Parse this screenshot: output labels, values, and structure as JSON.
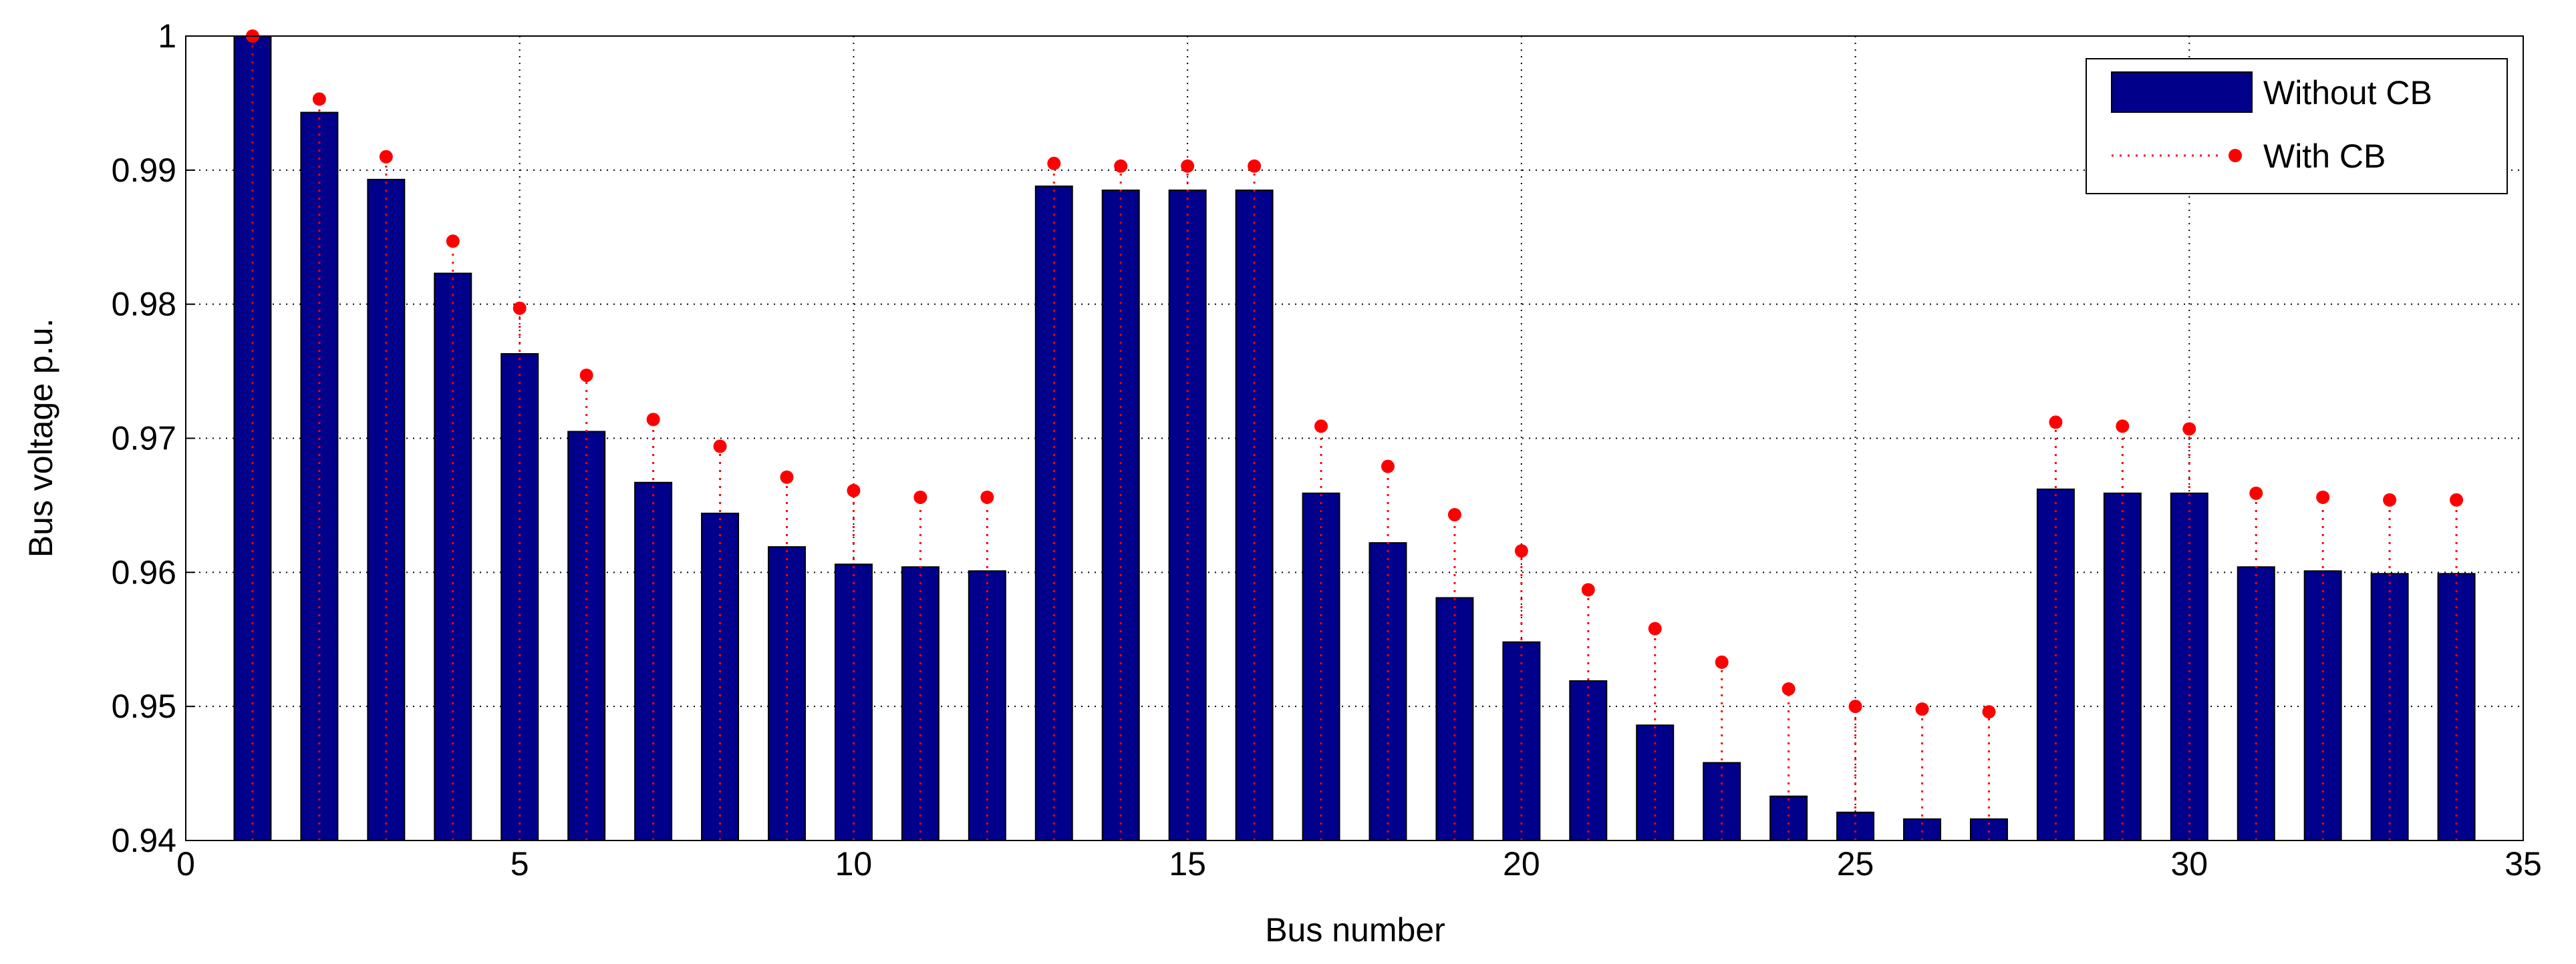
{
  "chart_data": {
    "type": "bar_stem",
    "xlabel": "Bus number",
    "ylabel": "Bus voltage p.u.",
    "x": [
      1,
      2,
      3,
      4,
      5,
      6,
      7,
      8,
      9,
      10,
      11,
      12,
      13,
      14,
      15,
      16,
      17,
      18,
      19,
      20,
      21,
      22,
      23,
      24,
      25,
      26,
      27,
      28,
      29,
      30,
      31,
      32,
      33,
      34
    ],
    "series": [
      {
        "name": "Without CB",
        "color": "#00008b",
        "values": [
          1.0,
          0.9943,
          0.9893,
          0.9823,
          0.9763,
          0.9705,
          0.9667,
          0.9644,
          0.9619,
          0.9606,
          0.9604,
          0.9601,
          0.9888,
          0.9885,
          0.9885,
          0.9885,
          0.9659,
          0.9622,
          0.9581,
          0.9548,
          0.9519,
          0.9486,
          0.9458,
          0.9433,
          0.9421,
          0.9416,
          0.9416,
          0.9662,
          0.9659,
          0.9659,
          0.9604,
          0.9601,
          0.9599,
          0.9599
        ]
      },
      {
        "name": "With CB",
        "color": "#ff0000",
        "values": [
          1.0,
          0.9953,
          0.991,
          0.9847,
          0.9797,
          0.9747,
          0.9714,
          0.9694,
          0.9671,
          0.9661,
          0.9656,
          0.9656,
          0.9905,
          0.9903,
          0.9903,
          0.9903,
          0.9709,
          0.9679,
          0.9643,
          0.9616,
          0.9587,
          0.9558,
          0.9533,
          0.9513,
          0.95,
          0.9498,
          0.9496,
          0.9712,
          0.9709,
          0.9707,
          0.9659,
          0.9656,
          0.9654,
          0.9654
        ]
      }
    ],
    "xlim": [
      0,
      35
    ],
    "xticks": [
      0,
      5,
      10,
      15,
      20,
      25,
      30,
      35
    ],
    "ylim": [
      0.94,
      1
    ],
    "yticks": [
      0.94,
      0.95,
      0.96,
      0.97,
      0.98,
      0.99,
      1
    ],
    "grid": true,
    "legend": "northeast"
  }
}
